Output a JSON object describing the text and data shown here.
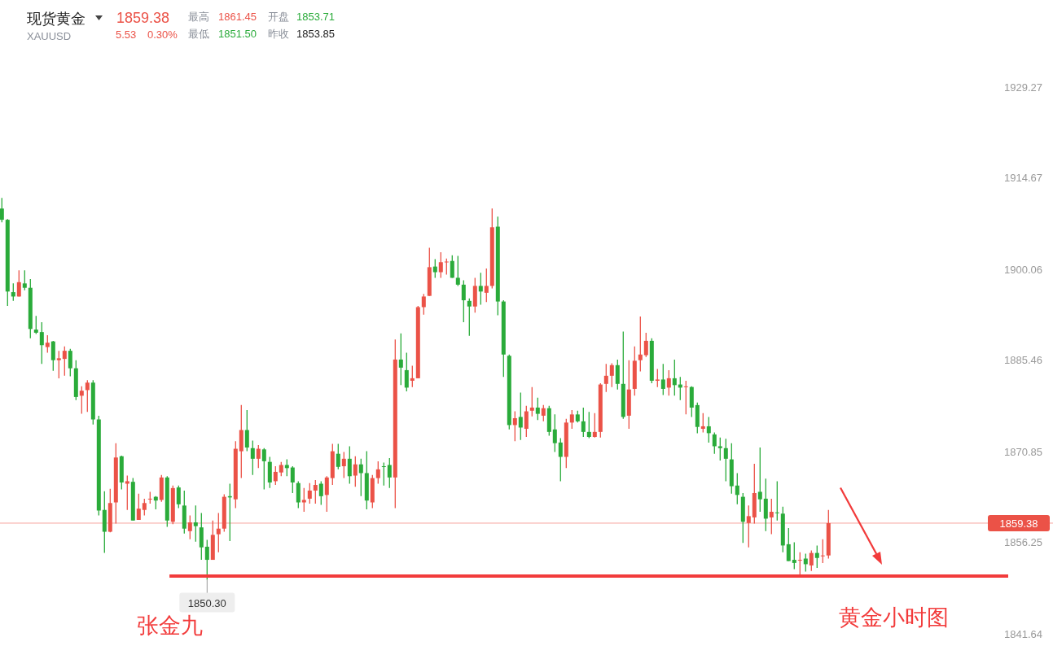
{
  "chart_data": {
    "type": "candlestick",
    "title": "现货黄金",
    "subtitle": "XAUUSD",
    "annotations": [
      "1859.38",
      "5.53",
      "0.30%",
      "最高",
      "1861.45",
      "开盘",
      "1853.71",
      "最低",
      "1851.50",
      "昨收",
      "1853.85",
      "张金九",
      "黄金小时图",
      {
        "text": "1850.30",
        "y": 1850.3
      }
    ],
    "categories": [
      null,
      null,
      null,
      null,
      null,
      null,
      null,
      null,
      null,
      null,
      null,
      null,
      null,
      null,
      null,
      null,
      null,
      null,
      null,
      null,
      null,
      null,
      null,
      null,
      null,
      null,
      null,
      null,
      null,
      null,
      null,
      null,
      null,
      null,
      null,
      null,
      null,
      null,
      null,
      null,
      null,
      null,
      null,
      null,
      null,
      null,
      null,
      null,
      null,
      null,
      null,
      null,
      null,
      null,
      null,
      null,
      null,
      null,
      null,
      null,
      null,
      null,
      null,
      null,
      null,
      null,
      null,
      null,
      null,
      null,
      null,
      null,
      null,
      null,
      null,
      null,
      null,
      null,
      null,
      null,
      null,
      null,
      null,
      null,
      null,
      null,
      null,
      null,
      null,
      null,
      null,
      null,
      null,
      null,
      null,
      null,
      null,
      null,
      null,
      null,
      null,
      null,
      null,
      null,
      null,
      null,
      null,
      null,
      null,
      null,
      null,
      null,
      null,
      null,
      null,
      null,
      null,
      null,
      null,
      null,
      null,
      null,
      null,
      null,
      null,
      null,
      null,
      null,
      null,
      null,
      null,
      null,
      null,
      null,
      null,
      null,
      null,
      null,
      null,
      null,
      null,
      null,
      null,
      null,
      null,
      null,
      null,
      null,
      null,
      null,
      null,
      null,
      null,
      null,
      null,
      null,
      null,
      null,
      null,
      null,
      null,
      null,
      null,
      null,
      null,
      null,
      null,
      null,
      null,
      null,
      null,
      null,
      null,
      null
    ],
    "ohlc": [
      [
        1909.8,
        1911.5,
        1907.6,
        1908.0
      ],
      [
        1908.0,
        1908.1,
        1894.2,
        1896.5
      ],
      [
        1896.4,
        1897.8,
        1895.0,
        1895.7
      ],
      [
        1895.7,
        1899.9,
        1895.7,
        1898.0
      ],
      [
        1897.8,
        1899.9,
        1896.7,
        1897.1
      ],
      [
        1897.1,
        1898.5,
        1889.0,
        1890.5
      ],
      [
        1890.4,
        1892.6,
        1889.7,
        1889.9
      ],
      [
        1890.0,
        1891.6,
        1884.9,
        1887.9
      ],
      [
        1887.6,
        1889.5,
        1886.7,
        1888.3
      ],
      [
        1888.5,
        1888.6,
        1883.8,
        1885.5
      ],
      [
        1885.5,
        1887.0,
        1882.6,
        1885.8
      ],
      [
        1885.7,
        1887.7,
        1883.0,
        1887.0
      ],
      [
        1887.0,
        1887.3,
        1882.9,
        1884.2
      ],
      [
        1884.2,
        1885.5,
        1879.1,
        1879.6
      ],
      [
        1879.8,
        1881.3,
        1876.9,
        1880.6
      ],
      [
        1880.7,
        1882.3,
        1877.2,
        1881.9
      ],
      [
        1881.9,
        1882.3,
        1875.2,
        1876.0
      ],
      [
        1876.0,
        1876.6,
        1860.6,
        1861.4
      ],
      [
        1861.5,
        1864.5,
        1854.6,
        1858.0
      ],
      [
        1858.0,
        1864.9,
        1857.9,
        1862.6
      ],
      [
        1862.7,
        1872.2,
        1859.3,
        1869.9
      ],
      [
        1870.1,
        1870.2,
        1864.8,
        1865.9
      ],
      [
        1865.7,
        1867.0,
        1861.5,
        1866.1
      ],
      [
        1866.0,
        1866.6,
        1859.8,
        1859.8
      ],
      [
        1859.9,
        1864.1,
        1859.9,
        1861.7
      ],
      [
        1861.5,
        1863.3,
        1860.6,
        1862.6
      ],
      [
        1863.2,
        1864.4,
        1862.5,
        1863.3
      ],
      [
        1863.6,
        1863.7,
        1861.6,
        1863.0
      ],
      [
        1863.1,
        1867.1,
        1862.8,
        1866.7
      ],
      [
        1866.7,
        1866.9,
        1858.8,
        1859.8
      ],
      [
        1859.6,
        1865.4,
        1859.2,
        1865.0
      ],
      [
        1865.1,
        1865.4,
        1861.8,
        1862.4
      ],
      [
        1862.2,
        1864.6,
        1857.7,
        1858.5
      ],
      [
        1858.1,
        1860.6,
        1856.8,
        1859.5
      ],
      [
        1859.5,
        1862.2,
        1856.4,
        1858.9
      ],
      [
        1858.7,
        1861.0,
        1853.5,
        1855.5
      ],
      [
        1855.6,
        1856.7,
        1850.3,
        1853.5
      ],
      [
        1853.5,
        1859.8,
        1853.5,
        1857.5
      ],
      [
        1857.6,
        1861.0,
        1854.7,
        1858.5
      ],
      [
        1858.5,
        1864.0,
        1858.0,
        1863.6
      ],
      [
        1863.7,
        1865.7,
        1856.5,
        1863.5
      ],
      [
        1863.2,
        1872.5,
        1861.8,
        1871.3
      ],
      [
        1870.9,
        1878.3,
        1866.6,
        1874.3
      ],
      [
        1874.3,
        1877.5,
        1870.9,
        1871.5
      ],
      [
        1871.4,
        1872.6,
        1867.1,
        1869.7
      ],
      [
        1869.7,
        1871.9,
        1868.2,
        1871.3
      ],
      [
        1871.2,
        1871.4,
        1864.8,
        1869.3
      ],
      [
        1869.2,
        1870.0,
        1865.0,
        1865.9
      ],
      [
        1866.1,
        1868.5,
        1865.5,
        1867.6
      ],
      [
        1867.5,
        1869.2,
        1866.9,
        1868.7
      ],
      [
        1868.7,
        1869.6,
        1866.9,
        1868.2
      ],
      [
        1868.3,
        1868.5,
        1864.2,
        1865.9
      ],
      [
        1865.8,
        1866.1,
        1861.8,
        1862.7
      ],
      [
        1862.7,
        1865.0,
        1861.2,
        1863.1
      ],
      [
        1863.3,
        1865.8,
        1862.5,
        1864.6
      ],
      [
        1864.6,
        1866.3,
        1862.5,
        1865.5
      ],
      [
        1865.7,
        1866.1,
        1862.3,
        1863.7
      ],
      [
        1863.9,
        1866.9,
        1861.2,
        1866.7
      ],
      [
        1866.6,
        1872.1,
        1865.5,
        1870.9
      ],
      [
        1870.5,
        1872.1,
        1868.0,
        1868.4
      ],
      [
        1868.5,
        1870.8,
        1866.6,
        1869.7
      ],
      [
        1869.7,
        1871.7,
        1865.7,
        1866.9
      ],
      [
        1867.0,
        1870.1,
        1865.2,
        1868.8
      ],
      [
        1868.8,
        1869.7,
        1863.7,
        1867.4
      ],
      [
        1867.4,
        1870.9,
        1861.6,
        1863.0
      ],
      [
        1862.7,
        1867.1,
        1861.8,
        1866.6
      ],
      [
        1866.6,
        1869.3,
        1865.7,
        1868.0
      ],
      [
        1868.5,
        1869.1,
        1865.4,
        1868.4
      ],
      [
        1868.7,
        1869.8,
        1865.0,
        1866.7
      ],
      [
        1866.7,
        1888.8,
        1861.8,
        1885.6
      ],
      [
        1885.6,
        1889.8,
        1881.5,
        1884.3
      ],
      [
        1883.9,
        1886.7,
        1880.5,
        1881.1
      ],
      [
        1882.2,
        1884.6,
        1881.2,
        1882.6
      ],
      [
        1882.6,
        1894.2,
        1882.6,
        1894.0
      ],
      [
        1894.0,
        1896.1,
        1892.8,
        1895.7
      ],
      [
        1895.8,
        1903.5,
        1895.8,
        1900.4
      ],
      [
        1900.5,
        1901.7,
        1898.7,
        1899.6
      ],
      [
        1899.6,
        1902.8,
        1898.7,
        1901.2
      ],
      [
        1901.2,
        1901.8,
        1899.2,
        1901.3
      ],
      [
        1901.4,
        1902.3,
        1898.7,
        1898.7
      ],
      [
        1898.7,
        1902.2,
        1897.4,
        1897.6
      ],
      [
        1897.6,
        1898.3,
        1891.6,
        1895.1
      ],
      [
        1895.0,
        1895.4,
        1889.4,
        1894.1
      ],
      [
        1894.1,
        1898.7,
        1893.1,
        1897.4
      ],
      [
        1897.4,
        1899.5,
        1894.4,
        1896.5
      ],
      [
        1896.3,
        1900.2,
        1894.8,
        1897.4
      ],
      [
        1897.4,
        1909.8,
        1897.0,
        1906.8
      ],
      [
        1906.9,
        1908.5,
        1892.7,
        1894.9
      ],
      [
        1894.9,
        1895.1,
        1882.8,
        1886.4
      ],
      [
        1886.2,
        1886.4,
        1874.4,
        1875.1
      ],
      [
        1875.1,
        1877.3,
        1872.5,
        1876.2
      ],
      [
        1876.4,
        1880.3,
        1872.7,
        1874.7
      ],
      [
        1874.5,
        1878.2,
        1873.2,
        1877.3
      ],
      [
        1877.4,
        1881.2,
        1876.5,
        1877.9
      ],
      [
        1877.9,
        1879.5,
        1875.9,
        1876.9
      ],
      [
        1876.6,
        1878.3,
        1875.7,
        1877.8
      ],
      [
        1877.8,
        1878.2,
        1873.4,
        1874.0
      ],
      [
        1874.4,
        1876.8,
        1870.8,
        1872.2
      ],
      [
        1872.3,
        1873.0,
        1866.1,
        1870.0
      ],
      [
        1870.0,
        1876.1,
        1868.2,
        1875.5
      ],
      [
        1875.5,
        1877.5,
        1874.5,
        1876.8
      ],
      [
        1876.8,
        1877.4,
        1875.5,
        1875.7
      ],
      [
        1875.7,
        1877.9,
        1873.2,
        1874.0
      ],
      [
        1874.0,
        1877.2,
        1873.0,
        1873.2
      ],
      [
        1873.2,
        1877.0,
        1873.1,
        1874.0
      ],
      [
        1874.0,
        1881.8,
        1873.1,
        1881.6
      ],
      [
        1881.7,
        1884.9,
        1880.4,
        1883.0
      ],
      [
        1883.0,
        1885.0,
        1881.2,
        1884.7
      ],
      [
        1884.7,
        1885.6,
        1880.8,
        1881.7
      ],
      [
        1881.7,
        1890.1,
        1876.1,
        1876.4
      ],
      [
        1876.6,
        1885.5,
        1874.5,
        1880.8
      ],
      [
        1880.9,
        1887.7,
        1879.8,
        1885.4
      ],
      [
        1885.5,
        1892.5,
        1883.7,
        1886.4
      ],
      [
        1886.3,
        1889.9,
        1886.0,
        1888.6
      ],
      [
        1888.6,
        1889.0,
        1881.8,
        1882.2
      ],
      [
        1882.2,
        1884.1,
        1881.2,
        1882.4
      ],
      [
        1882.4,
        1884.9,
        1879.9,
        1880.9
      ],
      [
        1881.1,
        1883.9,
        1879.8,
        1882.6
      ],
      [
        1882.6,
        1885.6,
        1879.8,
        1881.5
      ],
      [
        1881.6,
        1882.8,
        1879.1,
        1881.1
      ],
      [
        1881.2,
        1882.2,
        1876.8,
        1881.3
      ],
      [
        1881.2,
        1881.3,
        1876.4,
        1877.9
      ],
      [
        1878.3,
        1878.7,
        1873.8,
        1874.8
      ],
      [
        1874.5,
        1877.0,
        1873.9,
        1874.9
      ],
      [
        1874.9,
        1876.4,
        1872.3,
        1873.8
      ],
      [
        1873.6,
        1873.9,
        1870.5,
        1871.7
      ],
      [
        1871.7,
        1873.1,
        1869.4,
        1871.4
      ],
      [
        1871.4,
        1872.9,
        1866.1,
        1869.7
      ],
      [
        1869.6,
        1872.2,
        1864.1,
        1865.3
      ],
      [
        1865.4,
        1867.4,
        1862.4,
        1863.9
      ],
      [
        1863.6,
        1864.2,
        1856.2,
        1859.6
      ],
      [
        1859.4,
        1862.2,
        1855.5,
        1860.5
      ],
      [
        1860.3,
        1868.9,
        1859.3,
        1864.2
      ],
      [
        1864.4,
        1871.5,
        1861.2,
        1863.2
      ],
      [
        1863.3,
        1866.5,
        1858.1,
        1860.1
      ],
      [
        1860.3,
        1863.3,
        1857.6,
        1861.2
      ],
      [
        1861.1,
        1866.1,
        1859.8,
        1861.0
      ],
      [
        1860.9,
        1862.0,
        1854.7,
        1855.8
      ],
      [
        1856.0,
        1858.6,
        1853.3,
        1853.3
      ],
      [
        1853.5,
        1856.3,
        1852.0,
        1853.0
      ],
      [
        1853.4,
        1854.7,
        1851.0,
        1853.5
      ],
      [
        1853.7,
        1854.5,
        1851.6,
        1852.8
      ],
      [
        1852.6,
        1855.0,
        1851.7,
        1854.6
      ],
      [
        1854.6,
        1855.8,
        1852.2,
        1853.8
      ],
      [
        1854.1,
        1856.8,
        1853.0,
        1854.2
      ],
      [
        1854.2,
        1861.5,
        1853.7,
        1859.38
      ],
      null,
      null,
      null,
      null,
      null,
      null,
      null,
      null,
      null,
      null,
      null,
      null,
      null,
      null,
      null,
      null,
      null,
      null,
      null,
      null,
      null,
      null,
      null,
      null,
      null,
      null,
      null,
      null
    ],
    "ylim": [
      1841.64,
      1929.27
    ],
    "yticks": [
      1929.27,
      1914.67,
      1900.06,
      1885.46,
      1870.85,
      1856.25,
      1841.64
    ],
    "tick_labels": "y",
    "ref_lines": [
      {
        "axis": "y",
        "value": 1859.38,
        "label": "1859.38",
        "color": "#f7a39d"
      },
      {
        "axis": "y",
        "value": 1850.9,
        "color": "#f23b3b"
      }
    ]
  }
}
